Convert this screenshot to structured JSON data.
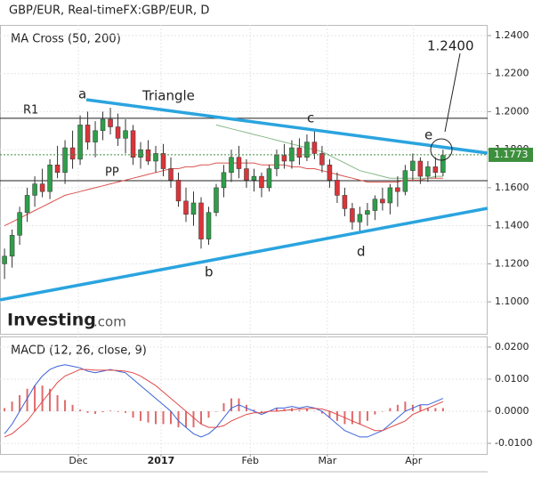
{
  "chart_data": [
    {
      "type": "candlestick",
      "title": "GBP/EUR, Real-timeFX:GBP/EUR, D",
      "subtitle": "MA Cross (50, 200)",
      "xlim": [
        -0.6,
        63.9
      ],
      "ylim": [
        1.0832,
        1.2456
      ],
      "yticks": [
        {
          "value": 1.24,
          "label": "1.2400"
        },
        {
          "value": 1.22,
          "label": "1.2200"
        },
        {
          "value": 1.2,
          "label": "1.2000"
        },
        {
          "value": 1.18,
          "label": "1.1800"
        },
        {
          "value": 1.16,
          "label": "1.1600"
        },
        {
          "value": 1.14,
          "label": "1.1400"
        },
        {
          "value": 1.12,
          "label": "1.1200"
        },
        {
          "value": 1.1,
          "label": "1.1000"
        }
      ],
      "grid": true,
      "up_color": "#2f9e4a",
      "down_color": "#d9353a",
      "ohlc": [
        [
          1.12,
          1.128,
          1.112,
          1.124
        ],
        [
          1.124,
          1.138,
          1.118,
          1.135
        ],
        [
          1.135,
          1.15,
          1.13,
          1.147
        ],
        [
          1.147,
          1.16,
          1.142,
          1.156
        ],
        [
          1.156,
          1.166,
          1.15,
          1.162
        ],
        [
          1.162,
          1.17,
          1.155,
          1.158
        ],
        [
          1.158,
          1.175,
          1.154,
          1.172
        ],
        [
          1.172,
          1.182,
          1.165,
          1.168
        ],
        [
          1.168,
          1.185,
          1.162,
          1.181
        ],
        [
          1.181,
          1.19,
          1.17,
          1.175
        ],
        [
          1.175,
          1.198,
          1.172,
          1.193
        ],
        [
          1.193,
          1.2,
          1.18,
          1.184
        ],
        [
          1.184,
          1.195,
          1.176,
          1.19
        ],
        [
          1.19,
          1.2,
          1.185,
          1.196
        ],
        [
          1.196,
          1.202,
          1.188,
          1.192
        ],
        [
          1.192,
          1.199,
          1.182,
          1.186
        ],
        [
          1.186,
          1.196,
          1.178,
          1.19
        ],
        [
          1.19,
          1.193,
          1.172,
          1.176
        ],
        [
          1.176,
          1.184,
          1.17,
          1.18
        ],
        [
          1.18,
          1.185,
          1.172,
          1.174
        ],
        [
          1.174,
          1.182,
          1.168,
          1.178
        ],
        [
          1.178,
          1.183,
          1.166,
          1.17
        ],
        [
          1.17,
          1.176,
          1.16,
          1.164
        ],
        [
          1.164,
          1.168,
          1.15,
          1.153
        ],
        [
          1.153,
          1.16,
          1.142,
          1.146
        ],
        [
          1.146,
          1.158,
          1.14,
          1.152
        ],
        [
          1.152,
          1.155,
          1.128,
          1.133
        ],
        [
          1.133,
          1.15,
          1.13,
          1.147
        ],
        [
          1.147,
          1.162,
          1.145,
          1.16
        ],
        [
          1.16,
          1.172,
          1.155,
          1.168
        ],
        [
          1.168,
          1.18,
          1.163,
          1.176
        ],
        [
          1.176,
          1.182,
          1.165,
          1.17
        ],
        [
          1.17,
          1.175,
          1.16,
          1.164
        ],
        [
          1.164,
          1.17,
          1.158,
          1.166
        ],
        [
          1.166,
          1.168,
          1.155,
          1.16
        ],
        [
          1.16,
          1.172,
          1.158,
          1.17
        ],
        [
          1.17,
          1.18,
          1.166,
          1.177
        ],
        [
          1.177,
          1.183,
          1.17,
          1.174
        ],
        [
          1.174,
          1.185,
          1.17,
          1.181
        ],
        [
          1.181,
          1.186,
          1.172,
          1.176
        ],
        [
          1.176,
          1.188,
          1.174,
          1.184
        ],
        [
          1.184,
          1.19,
          1.175,
          1.178
        ],
        [
          1.178,
          1.182,
          1.168,
          1.172
        ],
        [
          1.172,
          1.175,
          1.16,
          1.164
        ],
        [
          1.164,
          1.168,
          1.152,
          1.156
        ],
        [
          1.156,
          1.16,
          1.145,
          1.149
        ],
        [
          1.149,
          1.152,
          1.138,
          1.142
        ],
        [
          1.142,
          1.15,
          1.136,
          1.146
        ],
        [
          1.146,
          1.152,
          1.14,
          1.148
        ],
        [
          1.148,
          1.156,
          1.143,
          1.154
        ],
        [
          1.154,
          1.16,
          1.148,
          1.152
        ],
        [
          1.152,
          1.162,
          1.146,
          1.16
        ],
        [
          1.16,
          1.166,
          1.15,
          1.158
        ],
        [
          1.158,
          1.172,
          1.156,
          1.169
        ],
        [
          1.169,
          1.178,
          1.164,
          1.174
        ],
        [
          1.174,
          1.176,
          1.162,
          1.166
        ],
        [
          1.166,
          1.174,
          1.163,
          1.171
        ],
        [
          1.171,
          1.176,
          1.165,
          1.168
        ],
        [
          1.168,
          1.18,
          1.166,
          1.177
        ]
      ],
      "lines": [
        {
          "color": "#d9534f",
          "values": [
            1.14,
            1.142,
            1.144,
            1.146,
            1.148,
            1.15,
            1.152,
            1.154,
            1.156,
            1.157,
            1.158,
            1.159,
            1.16,
            1.161,
            1.162,
            1.163,
            1.164,
            1.165,
            1.166,
            1.167,
            1.168,
            1.169,
            1.17,
            1.17,
            1.171,
            1.171,
            1.172,
            1.172,
            1.173,
            1.173,
            1.173,
            1.173,
            1.173,
            1.173,
            1.172,
            1.172,
            1.172,
            1.172,
            1.171,
            1.171,
            1.17,
            1.17,
            1.169,
            1.168,
            1.167,
            1.166,
            1.165,
            1.164,
            1.163,
            1.163,
            1.163,
            1.163,
            1.163,
            1.164,
            1.164,
            1.164,
            1.165,
            1.165,
            1.165
          ]
        },
        {
          "color": "#86b886",
          "values": [
            null,
            null,
            null,
            null,
            null,
            null,
            null,
            null,
            null,
            null,
            null,
            null,
            null,
            null,
            null,
            null,
            null,
            null,
            null,
            null,
            null,
            null,
            null,
            null,
            null,
            null,
            null,
            null,
            1.193,
            1.192,
            1.191,
            1.19,
            1.189,
            1.188,
            1.187,
            1.186,
            1.185,
            1.184,
            1.183,
            1.182,
            1.181,
            1.18,
            1.179,
            1.177,
            1.175,
            1.173,
            1.171,
            1.169,
            1.168,
            1.167,
            1.166,
            1.165,
            1.165,
            1.165,
            1.165,
            1.165,
            1.165,
            1.166,
            1.166
          ]
        }
      ],
      "levels": [
        {
          "label": "R1",
          "value": 1.1965
        },
        {
          "label": "PP",
          "value": 1.1637
        }
      ],
      "last_price": {
        "value": 1.1773,
        "label": "1.1773",
        "color": "#3d8f3d"
      },
      "trendlines": {
        "color": "#2aa4df",
        "lines": [
          {
            "x": [
              10.82,
              63.9
            ],
            "y": [
              1.2063,
              1.1782
            ]
          },
          {
            "x": [
              -0.6,
              63.9
            ],
            "y": [
              1.101,
              1.1492
            ]
          }
        ]
      },
      "annotations": [
        "a",
        "b",
        "c",
        "d",
        "e",
        "Triangle"
      ],
      "target": {
        "value": 1.24,
        "label": "1.2400"
      },
      "logo": [
        "Investing",
        ".com"
      ]
    },
    {
      "type": "macd",
      "title": "MACD (12, 26, close, 9)",
      "xlim": [
        -0.6,
        63.9
      ],
      "ylim": [
        -0.0133,
        0.0233
      ],
      "yticks": [
        {
          "value": 0.02,
          "label": "0.0200"
        },
        {
          "value": 0.01,
          "label": "0.0100"
        },
        {
          "value": 0,
          "label": "0.0000"
        },
        {
          "value": -0.01,
          "label": "-0.0100"
        }
      ],
      "xticks": [
        {
          "value": 9.76,
          "label": "Dec"
        },
        {
          "value": 20.7,
          "label": "2017"
        },
        {
          "value": 32.5,
          "label": "Feb"
        },
        {
          "value": 42.7,
          "label": "Mar"
        },
        {
          "value": 54.1,
          "label": "Apr"
        }
      ],
      "series": [
        {
          "color": "#3b63d8",
          "values": [
            -0.007,
            -0.004,
            0.0,
            0.004,
            0.008,
            0.011,
            0.013,
            0.014,
            0.0145,
            0.014,
            0.0135,
            0.0125,
            0.012,
            0.0125,
            0.013,
            0.0125,
            0.012,
            0.01,
            0.008,
            0.006,
            0.004,
            0.002,
            0.0,
            -0.003,
            -0.005,
            -0.007,
            -0.008,
            -0.007,
            -0.005,
            -0.002,
            0.001,
            0.002,
            0.001,
            0.0,
            -0.001,
            0.0,
            0.001,
            0.001,
            0.0015,
            0.001,
            0.0015,
            0.001,
            0.0,
            -0.002,
            -0.004,
            -0.006,
            -0.007,
            -0.008,
            -0.008,
            -0.007,
            -0.006,
            -0.004,
            -0.002,
            0.0,
            0.001,
            0.002,
            0.002,
            0.003,
            0.004
          ]
        },
        {
          "color": "#e04848",
          "values": [
            -0.008,
            -0.007,
            -0.005,
            -0.003,
            0.0,
            0.003,
            0.006,
            0.009,
            0.011,
            0.012,
            0.013,
            0.013,
            0.0128,
            0.0128,
            0.0128,
            0.0127,
            0.0125,
            0.012,
            0.011,
            0.0095,
            0.008,
            0.006,
            0.004,
            0.002,
            0.0,
            -0.002,
            -0.004,
            -0.005,
            -0.005,
            -0.0045,
            -0.003,
            -0.002,
            -0.001,
            -0.0005,
            -0.0005,
            0.0,
            0.0,
            0.0003,
            0.0005,
            0.0007,
            0.0008,
            0.0009,
            0.0007,
            0.0,
            -0.001,
            -0.002,
            -0.003,
            -0.004,
            -0.005,
            -0.006,
            -0.006,
            -0.005,
            -0.004,
            -0.003,
            -0.001,
            0.0,
            0.001,
            0.002,
            0.003
          ]
        }
      ],
      "histogram": {
        "color": "#e06a6a",
        "values": [
          0.001,
          0.003,
          0.005,
          0.007,
          0.008,
          0.008,
          0.007,
          0.005,
          0.0035,
          0.002,
          0.0005,
          -0.0005,
          -0.0008,
          -0.0003,
          0.0002,
          -0.0002,
          -0.0005,
          -0.002,
          -0.003,
          -0.0035,
          -0.004,
          -0.004,
          -0.004,
          -0.005,
          -0.005,
          -0.005,
          -0.004,
          -0.002,
          0.0,
          0.0025,
          0.004,
          0.004,
          0.002,
          0.0005,
          -0.0005,
          0.0,
          0.001,
          0.0007,
          0.001,
          0.0003,
          0.0007,
          0.0001,
          -0.0007,
          -0.002,
          -0.003,
          -0.004,
          -0.004,
          -0.004,
          -0.003,
          -0.001,
          0.0,
          0.001,
          0.002,
          0.003,
          0.002,
          0.002,
          0.001,
          0.001,
          0.001
        ]
      }
    }
  ]
}
